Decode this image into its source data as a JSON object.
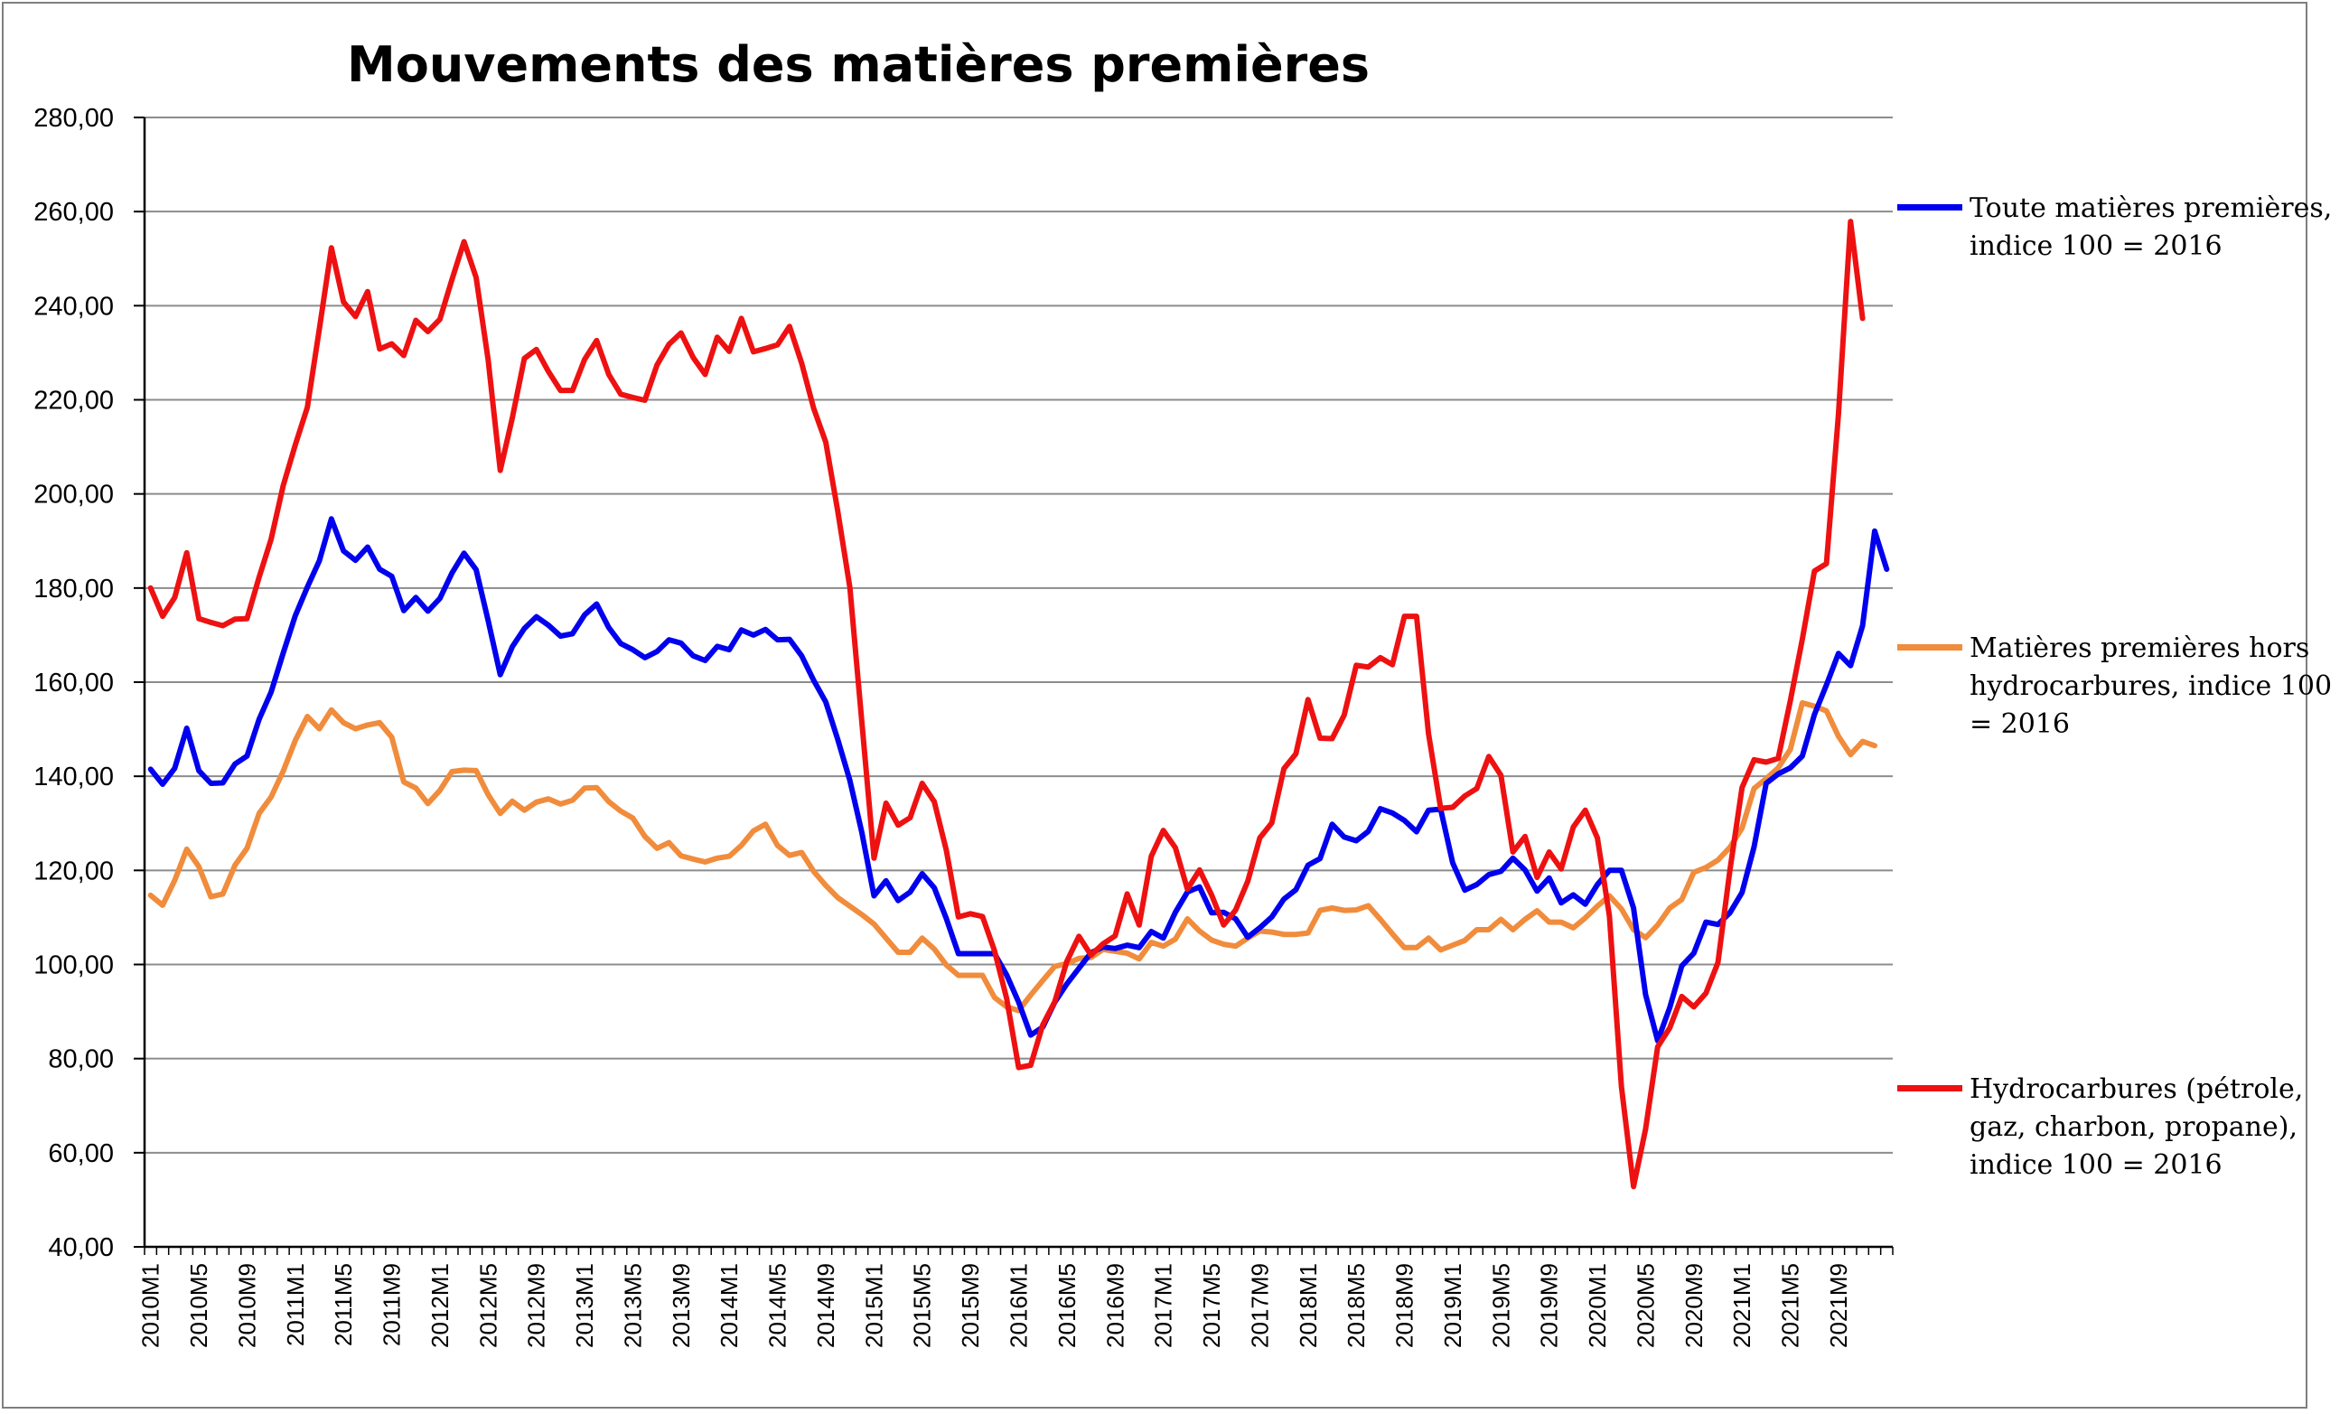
{
  "chart_data": {
    "type": "line",
    "title": "Mouvements des matières premières",
    "xlabel": "",
    "ylabel": "",
    "ylim": [
      40,
      280
    ],
    "y_ticks": [
      "40,00",
      "60,00",
      "80,00",
      "100,00",
      "120,00",
      "140,00",
      "160,00",
      "180,00",
      "200,00",
      "220,00",
      "240,00",
      "260,00",
      "280,00"
    ],
    "x_tick_labels": [
      "2010M1",
      "2010M5",
      "2010M9",
      "2011M1",
      "2011M5",
      "2011M9",
      "2012M1",
      "2012M5",
      "2012M9",
      "2013M1",
      "2013M5",
      "2013M9",
      "2014M1",
      "2014M5",
      "2014M9",
      "2015M1",
      "2015M5",
      "2015M9",
      "2016M1",
      "2016M5",
      "2016M9",
      "2017M1",
      "2017M5",
      "2017M9",
      "2018M1",
      "2018M5",
      "2018M9",
      "2019M1",
      "2019M5",
      "2019M9",
      "2020M1",
      "2020M5",
      "2020M9",
      "2021M1",
      "2021M5",
      "2021M9"
    ],
    "grid": "horizontal",
    "legend_position": "right",
    "x_start": "2010M1",
    "x_end": "2021M12",
    "series": [
      {
        "name": "Toute matières premières, indice 100 = 2016",
        "color": "#0000ee",
        "values": [
          141.5,
          138.3,
          141.7,
          150.2,
          141.2,
          138.5,
          138.6,
          142.6,
          144.3,
          152.1,
          157.9,
          166.2,
          174.1,
          180.2,
          185.8,
          194.7,
          187.9,
          185.9,
          188.7,
          184.0,
          182.5,
          175.2,
          178.0,
          175.1,
          177.8,
          183.2,
          187.4,
          183.9,
          173.1,
          161.6,
          167.5,
          171.4,
          173.9,
          172.1,
          169.8,
          170.3,
          174.3,
          176.6,
          171.6,
          168.2,
          166.9,
          165.2,
          166.5,
          169.0,
          168.3,
          165.6,
          164.6,
          167.6,
          166.9,
          171.1,
          170.0,
          171.2,
          169.0,
          169.1,
          165.6,
          160.4,
          155.8,
          147.8,
          139.1,
          128.0,
          114.6,
          117.8,
          113.6,
          115.4,
          119.3,
          116.3,
          109.8,
          102.3,
          102.3,
          102.3,
          102.3,
          97.8,
          92.0,
          85.0,
          86.7,
          92.0,
          95.9,
          99.2,
          102.5,
          103.7,
          103.4,
          104.1,
          103.6,
          107.0,
          105.6,
          111.1,
          115.4,
          116.5,
          111.0,
          111.1,
          109.7,
          105.8,
          107.8,
          110.1,
          113.9,
          115.9,
          121.1,
          122.5,
          129.8,
          127.1,
          126.3,
          128.3,
          133.1,
          132.2,
          130.6,
          128.2,
          132.8,
          133.0,
          121.6,
          115.8,
          117.0,
          119.1,
          119.8,
          122.6,
          120.1,
          115.6,
          118.4,
          113.1,
          114.8,
          112.8,
          117.0,
          120.0,
          120.0,
          112.0,
          93.6,
          83.8,
          90.8,
          99.7,
          102.4,
          109.0,
          108.5,
          111.0,
          115.3,
          125.0,
          138.5,
          140.5,
          141.8,
          144.3,
          153.1,
          159.4,
          166.1,
          163.5,
          172.0,
          192.1,
          184.0
        ]
      },
      {
        "name": "Matières premières hors hydrocarbures, indice 100 = 2016",
        "color": "#f08c3c",
        "values": [
          114.7,
          112.6,
          117.9,
          124.5,
          120.8,
          114.4,
          115.0,
          121.1,
          124.7,
          132.1,
          135.6,
          141.1,
          147.6,
          152.7,
          150.1,
          154.1,
          151.4,
          150.1,
          150.9,
          151.4,
          148.3,
          138.8,
          137.5,
          134.2,
          137.0,
          141.0,
          141.3,
          141.2,
          136.1,
          132.1,
          134.7,
          132.8,
          134.5,
          135.2,
          134.1,
          134.9,
          137.5,
          137.6,
          134.6,
          132.6,
          131.1,
          127.2,
          124.7,
          125.9,
          123.1,
          122.4,
          121.8,
          122.6,
          123.0,
          125.3,
          128.4,
          129.8,
          125.3,
          123.2,
          123.8,
          119.8,
          116.8,
          114.2,
          112.4,
          110.6,
          108.6,
          105.6,
          102.6,
          102.6,
          105.6,
          103.3,
          99.9,
          97.7,
          97.7,
          97.7,
          93.0,
          91.0,
          90.2,
          93.5,
          96.6,
          99.6,
          100.2,
          101.3,
          101.5,
          103.2,
          102.8,
          102.4,
          101.2,
          104.7,
          103.9,
          105.4,
          109.7,
          107.1,
          105.2,
          104.3,
          103.9,
          105.6,
          107.1,
          106.9,
          106.4,
          106.4,
          106.7,
          111.5,
          112.0,
          111.5,
          111.6,
          112.5,
          109.6,
          106.5,
          103.6,
          103.6,
          105.6,
          103.1,
          104.1,
          105.1,
          107.4,
          107.4,
          109.6,
          107.4,
          109.6,
          111.4,
          109.0,
          109.0,
          107.8,
          109.9,
          112.4,
          114.6,
          111.8,
          107.4,
          105.7,
          108.4,
          112.0,
          113.8,
          119.6,
          120.6,
          122.2,
          124.9,
          129.0,
          137.4,
          139.5,
          141.8,
          145.7,
          155.6,
          154.9,
          153.9,
          148.5,
          144.6,
          147.4,
          146.5
        ]
      },
      {
        "name": "Hydrocarbures (pétrole, gaz, charbon, propane), indice 100 = 2016",
        "color": "#ee1111",
        "values": [
          180.0,
          174.0,
          178.0,
          187.5,
          173.5,
          172.7,
          172.0,
          173.4,
          173.5,
          182.3,
          190.4,
          201.8,
          210.4,
          218.4,
          235.1,
          252.3,
          240.8,
          237.7,
          243.0,
          230.8,
          231.9,
          229.4,
          236.9,
          234.5,
          237.1,
          245.6,
          253.6,
          246.0,
          228.5,
          205.0,
          216.1,
          228.8,
          230.7,
          226.0,
          222.0,
          222.0,
          228.6,
          232.6,
          225.4,
          221.2,
          220.5,
          219.9,
          227.4,
          231.8,
          234.2,
          229.0,
          225.4,
          233.3,
          230.3,
          237.3,
          230.2,
          230.9,
          231.7,
          235.6,
          227.8,
          218.2,
          211.0,
          196.3,
          180.1,
          151.4,
          122.6,
          134.3,
          129.6,
          131.2,
          138.5,
          134.6,
          124.3,
          110.1,
          110.8,
          110.2,
          102.9,
          92.8,
          78.1,
          78.6,
          87.2,
          92.1,
          100.7,
          106.0,
          102.0,
          104.4,
          106.1,
          115.0,
          108.4,
          123.0,
          128.5,
          124.8,
          116.0,
          120.1,
          114.8,
          108.4,
          111.6,
          117.7,
          126.9,
          130.1,
          141.6,
          144.8,
          156.3,
          148.1,
          148.0,
          153.0,
          163.6,
          163.2,
          165.2,
          163.7,
          174.0,
          174.0,
          149.0,
          133.2,
          133.4,
          135.8,
          137.4,
          144.2,
          140.2,
          123.9,
          127.2,
          118.5,
          123.9,
          120.3,
          129.2,
          132.8,
          126.9,
          110.3,
          74.0,
          52.8,
          65.0,
          82.5,
          86.5,
          93.2,
          91.0,
          93.9,
          100.4,
          120.1,
          137.6,
          143.5,
          143.0,
          143.8,
          156.0,
          169.1,
          183.6,
          185.2,
          216.9,
          257.9,
          237.3
        ]
      }
    ]
  }
}
